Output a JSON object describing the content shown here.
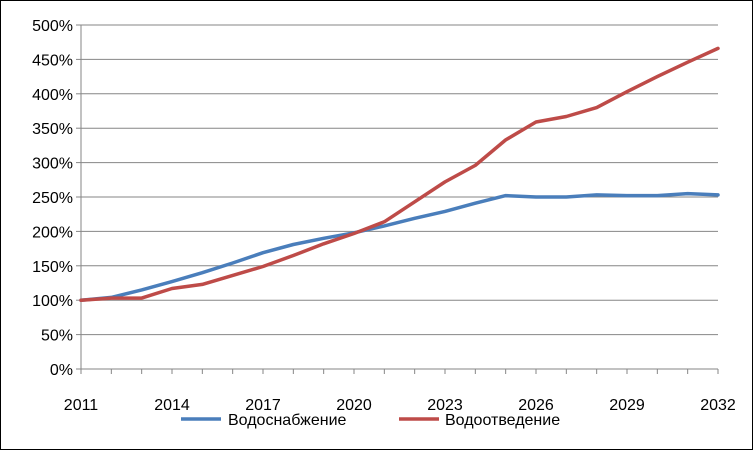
{
  "chart_data": {
    "type": "line",
    "x": [
      2011,
      2012,
      2013,
      2014,
      2015,
      2016,
      2017,
      2018,
      2019,
      2020,
      2021,
      2022,
      2023,
      2024,
      2025,
      2026,
      2027,
      2028,
      2029,
      2030,
      2031,
      2032
    ],
    "x_tick_labels": [
      "2011",
      "2014",
      "2017",
      "2020",
      "2023",
      "2026",
      "2029",
      "2032"
    ],
    "y_tick_labels": [
      "0%",
      "50%",
      "100%",
      "150%",
      "200%",
      "250%",
      "300%",
      "350%",
      "400%",
      "450%",
      "500%"
    ],
    "ylim": [
      0,
      500
    ],
    "y_unit": "%",
    "grid": true,
    "legend_position": "bottom",
    "series": [
      {
        "name": "Водоснабжение",
        "color": "#4a7ebb",
        "values": [
          100,
          104,
          115,
          127,
          140,
          154,
          169,
          181,
          190,
          198,
          208,
          219,
          229,
          241,
          252,
          250,
          250,
          253,
          252,
          252,
          255,
          253
        ]
      },
      {
        "name": "Водоотведение",
        "color": "#be4b48",
        "values": [
          100,
          103,
          103,
          117,
          123,
          136,
          149,
          165,
          182,
          197,
          214,
          243,
          272,
          296,
          333,
          359,
          367,
          380,
          403,
          425,
          446,
          466
        ]
      }
    ]
  }
}
